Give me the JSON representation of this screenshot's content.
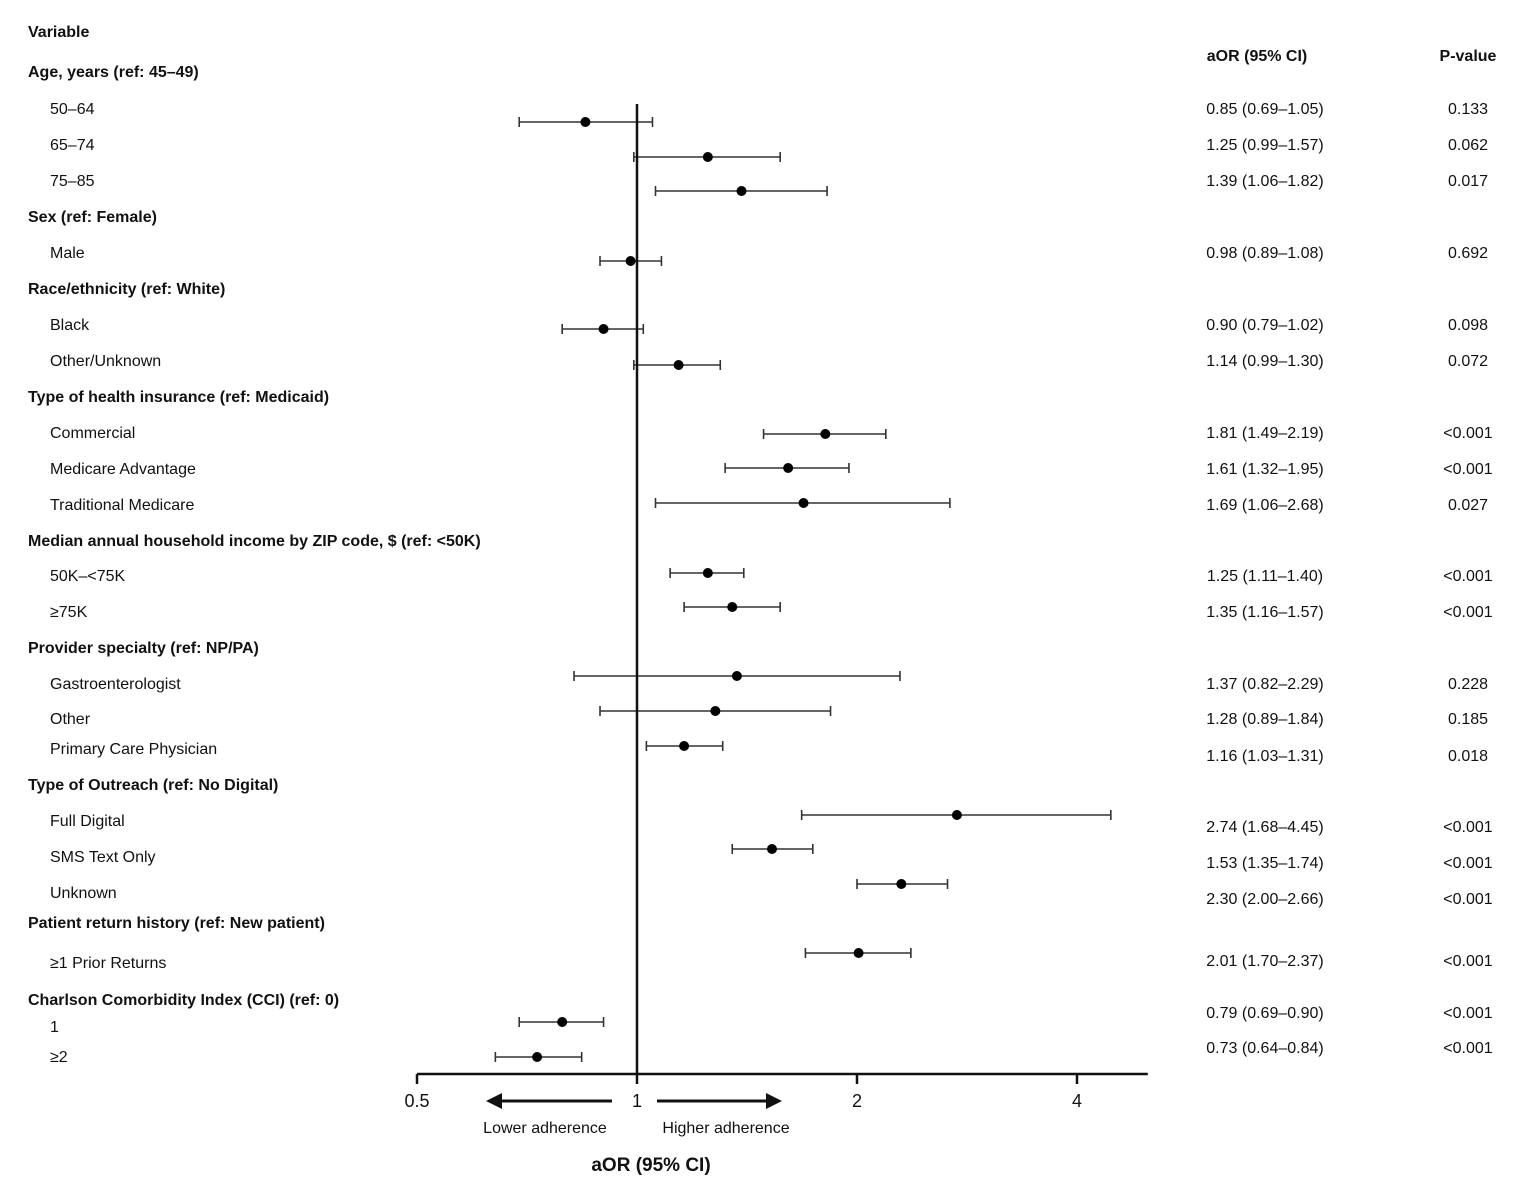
{
  "chart_data": {
    "type": "forest",
    "column_headers": {
      "variable": "Variable",
      "estimate": "aOR (95% CI)",
      "pvalue": "P-value"
    },
    "x_scale": "log",
    "xlim": [
      0.5,
      5.0
    ],
    "x_ticks": [
      0.5,
      1,
      2,
      4
    ],
    "x_tick_labels": [
      "0.5",
      "1",
      "2",
      "4"
    ],
    "reference_line": 1,
    "xlabel": "aOR (95% CI)",
    "direction_labels": {
      "left": "Lower adherence",
      "right": "Higher adherence"
    },
    "groups": [
      {
        "label": "Age, years (ref: 45–49)",
        "rows": [
          {
            "label": "50–64",
            "or": 0.85,
            "lo": 0.69,
            "hi": 1.05,
            "ci_text": "0.85 (0.69–1.05)",
            "p": "0.133"
          },
          {
            "label": "65–74",
            "or": 1.25,
            "lo": 0.99,
            "hi": 1.57,
            "ci_text": "1.25 (0.99–1.57)",
            "p": "0.062"
          },
          {
            "label": "75–85",
            "or": 1.39,
            "lo": 1.06,
            "hi": 1.82,
            "ci_text": "1.39 (1.06–1.82)",
            "p": "0.017"
          }
        ]
      },
      {
        "label": "Sex (ref: Female)",
        "rows": [
          {
            "label": "Male",
            "or": 0.98,
            "lo": 0.89,
            "hi": 1.08,
            "ci_text": "0.98 (0.89–1.08)",
            "p": "0.692"
          }
        ]
      },
      {
        "label": "Race/ethnicity (ref: White)",
        "rows": [
          {
            "label": "Black",
            "or": 0.9,
            "lo": 0.79,
            "hi": 1.02,
            "ci_text": "0.90 (0.79–1.02)",
            "p": "0.098"
          },
          {
            "label": "Other/Unknown",
            "or": 1.14,
            "lo": 0.99,
            "hi": 1.3,
            "ci_text": "1.14 (0.99–1.30)",
            "p": "0.072"
          }
        ]
      },
      {
        "label": "Type of health insurance (ref: Medicaid)",
        "rows": [
          {
            "label": "Commercial",
            "or": 1.81,
            "lo": 1.49,
            "hi": 2.19,
            "ci_text": "1.81 (1.49–2.19)",
            "p": "<0.001"
          },
          {
            "label": "Medicare Advantage",
            "or": 1.61,
            "lo": 1.32,
            "hi": 1.95,
            "ci_text": "1.61 (1.32–1.95)",
            "p": "<0.001"
          },
          {
            "label": "Traditional Medicare",
            "or": 1.69,
            "lo": 1.06,
            "hi": 2.68,
            "ci_text": "1.69 (1.06–2.68)",
            "p": "0.027"
          }
        ]
      },
      {
        "label": "Median annual household income by ZIP code, $ (ref: <50K)",
        "rows": [
          {
            "label": "50K–<75K",
            "or": 1.25,
            "lo": 1.11,
            "hi": 1.4,
            "ci_text": "1.25 (1.11–1.40)",
            "p": "<0.001"
          },
          {
            "label": "≥75K",
            "or": 1.35,
            "lo": 1.16,
            "hi": 1.57,
            "ci_text": "1.35 (1.16–1.57)",
            "p": "<0.001"
          }
        ]
      },
      {
        "label": "Provider specialty (ref: NP/PA)",
        "rows": [
          {
            "label": "Gastroenterologist",
            "or": 1.37,
            "lo": 0.82,
            "hi": 2.29,
            "ci_text": "1.37 (0.82–2.29)",
            "p": "0.228"
          },
          {
            "label": "Other",
            "or": 1.28,
            "lo": 0.89,
            "hi": 1.84,
            "ci_text": "1.28 (0.89–1.84)",
            "p": "0.185"
          },
          {
            "label": "Primary Care Physician",
            "or": 1.16,
            "lo": 1.03,
            "hi": 1.31,
            "ci_text": "1.16 (1.03–1.31)",
            "p": "0.018"
          }
        ]
      },
      {
        "label": "Type of Outreach (ref: No Digital)",
        "rows": [
          {
            "label": "Full Digital",
            "or": 2.74,
            "lo": 1.68,
            "hi": 4.45,
            "ci_text": "2.74 (1.68–4.45)",
            "p": "<0.001"
          },
          {
            "label": "SMS Text Only",
            "or": 1.53,
            "lo": 1.35,
            "hi": 1.74,
            "ci_text": "1.53 (1.35–1.74)",
            "p": "<0.001"
          },
          {
            "label": "Unknown",
            "or": 2.3,
            "lo": 2.0,
            "hi": 2.66,
            "ci_text": "2.30 (2.00–2.66)",
            "p": "<0.001"
          }
        ]
      },
      {
        "label": "Patient return history (ref: New patient)",
        "rows": [
          {
            "label": "≥1 Prior Returns",
            "or": 2.01,
            "lo": 1.7,
            "hi": 2.37,
            "ci_text": "2.01 (1.70–2.37)",
            "p": "<0.001"
          }
        ]
      },
      {
        "label": "Charlson Comorbidity Index (CCI) (ref: 0)",
        "rows": [
          {
            "label": "1",
            "or": 0.79,
            "lo": 0.69,
            "hi": 0.9,
            "ci_text": "0.79 (0.69–0.90)",
            "p": "<0.001"
          },
          {
            "label": "≥2",
            "or": 0.73,
            "lo": 0.64,
            "hi": 0.84,
            "ci_text": "0.73 (0.64–0.84)",
            "p": "<0.001"
          }
        ]
      }
    ]
  }
}
